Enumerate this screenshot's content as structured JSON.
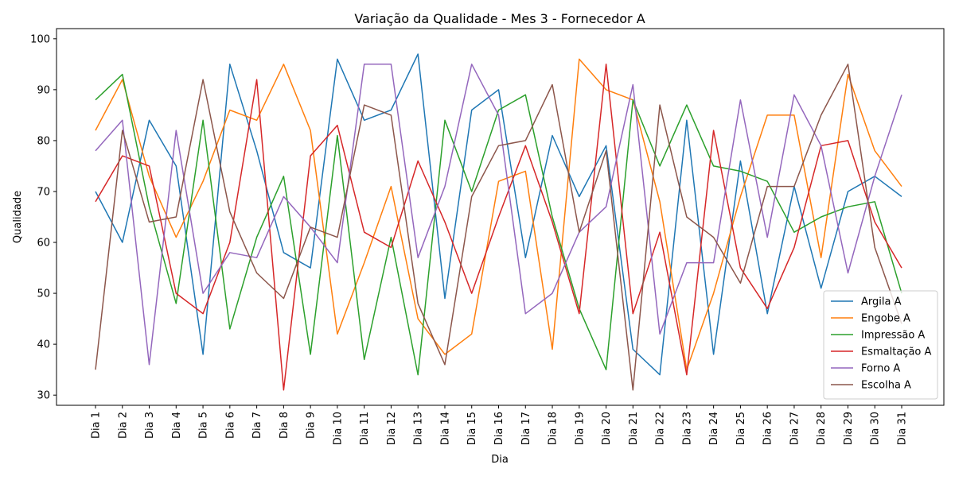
{
  "chart_data": {
    "type": "line",
    "title": "Variação da Qualidade - Mes 3 - Fornecedor A",
    "xlabel": "Dia",
    "ylabel": "Qualidade",
    "ylim": [
      28,
      102
    ],
    "yticks": [
      30,
      40,
      50,
      60,
      70,
      80,
      90,
      100
    ],
    "grid": false,
    "legend_position": "lower-right",
    "categories": [
      "Dia 1",
      "Dia 2",
      "Dia 3",
      "Dia 4",
      "Dia 5",
      "Dia 6",
      "Dia 7",
      "Dia 8",
      "Dia 9",
      "Dia 10",
      "Dia 11",
      "Dia 12",
      "Dia 13",
      "Dia 14",
      "Dia 15",
      "Dia 16",
      "Dia 17",
      "Dia 18",
      "Dia 19",
      "Dia 20",
      "Dia 21",
      "Dia 22",
      "Dia 23",
      "Dia 24",
      "Dia 25",
      "Dia 26",
      "Dia 27",
      "Dia 28",
      "Dia 29",
      "Dia 30",
      "Dia 31"
    ],
    "series": [
      {
        "name": "Argila A",
        "color": "#1f77b4",
        "values": [
          70,
          60,
          84,
          75,
          38,
          95,
          78,
          58,
          55,
          96,
          84,
          86,
          97,
          49,
          86,
          90,
          57,
          81,
          69,
          79,
          39,
          34,
          84,
          38,
          76,
          46,
          71,
          51,
          70,
          73,
          69
        ]
      },
      {
        "name": "Engobe A",
        "color": "#ff7f0e",
        "values": [
          82,
          92,
          73,
          61,
          72,
          86,
          84,
          95,
          82,
          42,
          56,
          71,
          45,
          38,
          42,
          72,
          74,
          39,
          96,
          90,
          88,
          68,
          35,
          50,
          69,
          85,
          85,
          57,
          93,
          78,
          71
        ]
      },
      {
        "name": "Impressão A",
        "color": "#2ca02c",
        "values": [
          88,
          93,
          67,
          48,
          84,
          43,
          61,
          73,
          38,
          81,
          37,
          61,
          34,
          84,
          70,
          86,
          89,
          65,
          47,
          35,
          88,
          75,
          87,
          75,
          74,
          72,
          62,
          65,
          67,
          68,
          50
        ]
      },
      {
        "name": "Esmaltação A",
        "color": "#d62728",
        "values": [
          68,
          77,
          75,
          50,
          46,
          60,
          92,
          31,
          77,
          83,
          62,
          59,
          76,
          64,
          50,
          65,
          79,
          64,
          46,
          95,
          46,
          62,
          34,
          82,
          55,
          47,
          59,
          79,
          80,
          64,
          55
        ]
      },
      {
        "name": "Forno A",
        "color": "#9467bd",
        "values": [
          78,
          84,
          36,
          82,
          50,
          58,
          57,
          69,
          63,
          56,
          95,
          95,
          57,
          71,
          95,
          85,
          46,
          50,
          62,
          67,
          91,
          42,
          56,
          56,
          88,
          61,
          89,
          79,
          54,
          73,
          89
        ]
      },
      {
        "name": "Escolha A",
        "color": "#8c564b",
        "values": [
          35,
          82,
          64,
          65,
          92,
          66,
          54,
          49,
          63,
          61,
          87,
          85,
          48,
          36,
          69,
          79,
          80,
          91,
          62,
          78,
          31,
          87,
          65,
          61,
          52,
          71,
          71,
          85,
          95,
          59,
          44
        ]
      }
    ]
  }
}
